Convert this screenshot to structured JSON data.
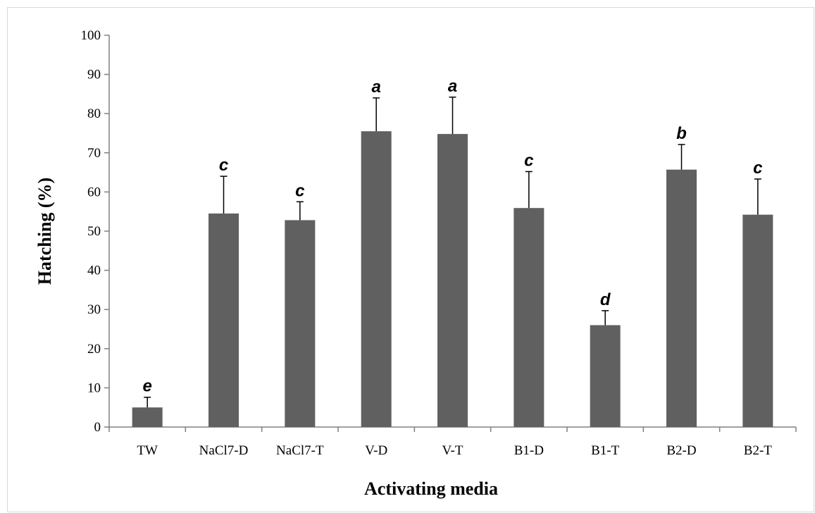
{
  "chart_data": {
    "type": "bar",
    "title": "",
    "xlabel": "Activating media",
    "ylabel": "Hatching  (%)",
    "ylim": [
      0,
      100
    ],
    "ytick_step": 10,
    "grid": false,
    "legend": "none",
    "bar_color": "#606060",
    "categories": [
      "TW",
      "NaCl7-D",
      "NaCl7-T",
      "V-D",
      "V-T",
      "B1-D",
      "B1-T",
      "B2-D",
      "B2-T"
    ],
    "values": [
      5,
      54.5,
      52.8,
      75.5,
      74.8,
      55.9,
      26.0,
      65.7,
      54.2
    ],
    "error_upper": [
      2.6,
      9.5,
      4.7,
      8.5,
      9.4,
      9.3,
      3.7,
      6.4,
      9.1
    ],
    "annotations": [
      "e",
      "c",
      "c",
      "a",
      "a",
      "c",
      "d",
      "b",
      "c"
    ]
  }
}
